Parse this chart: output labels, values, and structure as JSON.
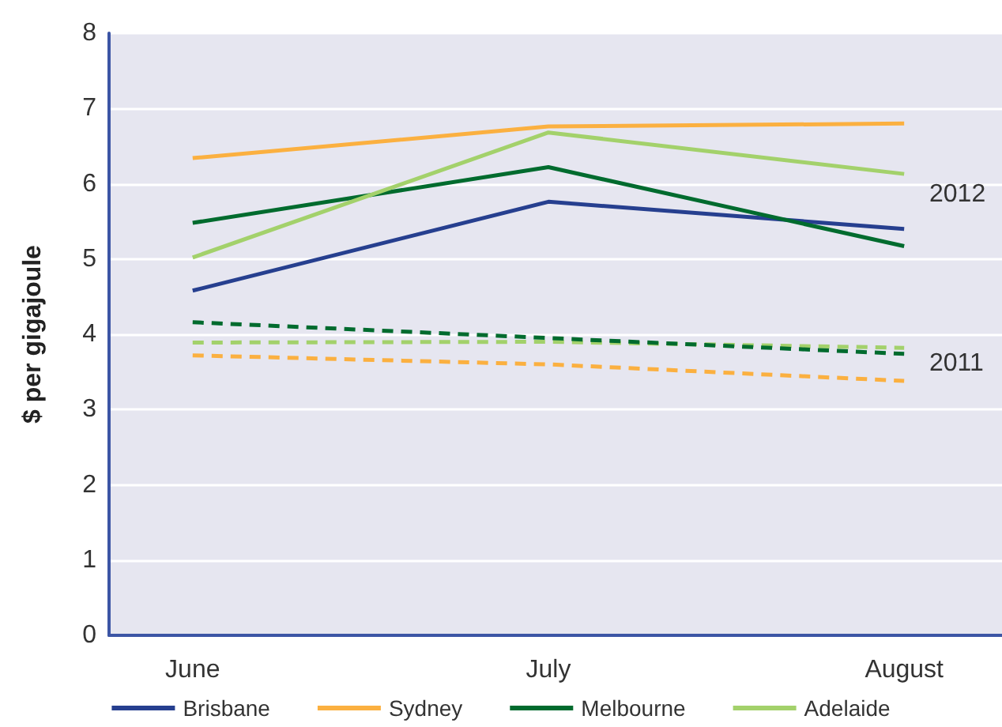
{
  "chart_data": {
    "type": "line",
    "ylabel": "$ per gigajoule",
    "categories": [
      "June",
      "July",
      "August"
    ],
    "ylim": [
      0,
      8
    ],
    "yticks": [
      0,
      1,
      2,
      3,
      4,
      5,
      6,
      7,
      8
    ],
    "grid": "y",
    "legend": "bottom",
    "marker": "none",
    "line_style": "solid",
    "series": [
      {
        "name": "Brisbane",
        "color": "#263f8f",
        "values": [
          4.58,
          5.76,
          5.4
        ]
      },
      {
        "name": "Sydney",
        "color": "#fbb040",
        "values": [
          6.34,
          6.76,
          6.8
        ]
      },
      {
        "name": "Melbourne",
        "color": "#006b2e",
        "values": [
          5.48,
          6.22,
          5.17
        ]
      },
      {
        "name": "Adelaide",
        "color": "#a3d16b",
        "values": [
          5.02,
          6.68,
          6.13
        ]
      },
      {
        "color": "#fbb040",
        "line_style": "dashed",
        "values": [
          3.72,
          3.6,
          3.38
        ]
      },
      {
        "color": "#a3d16b",
        "line_style": "dashed",
        "values": [
          3.89,
          3.9,
          3.82
        ]
      },
      {
        "color": "#006b2e",
        "line_style": "dashed",
        "values": [
          4.16,
          3.95,
          3.74
        ]
      }
    ],
    "annotations": [
      "2012",
      "2011"
    ]
  }
}
